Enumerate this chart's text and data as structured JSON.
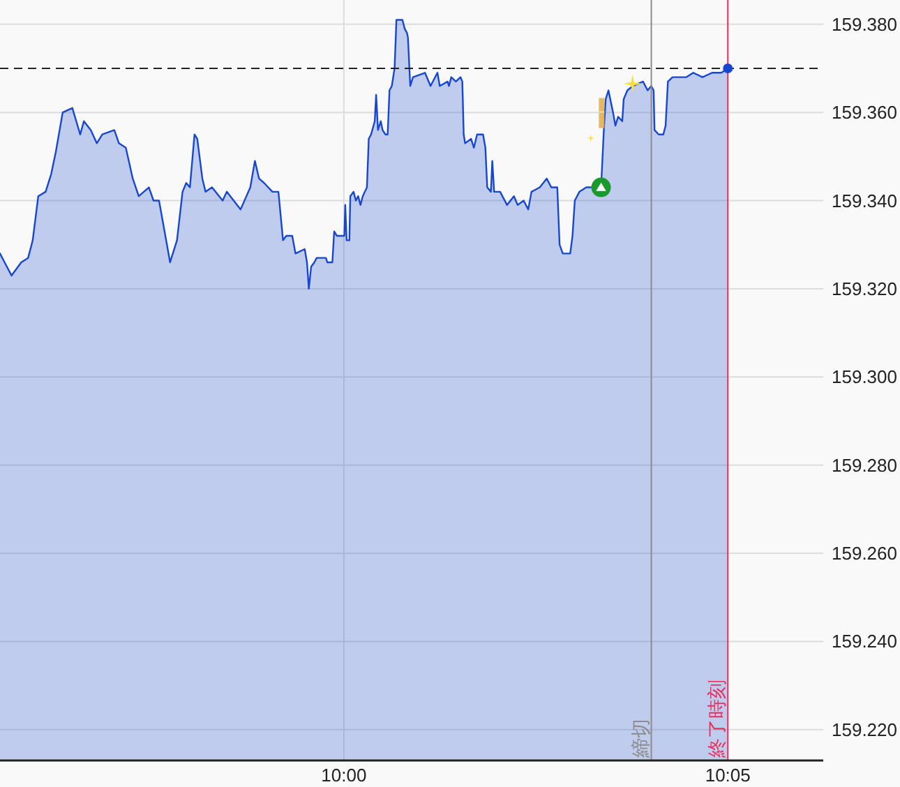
{
  "chart_data": {
    "type": "area",
    "xlim": [
      9.9254,
      10.104
    ],
    "xticks": [
      {
        "value": 10,
        "label": "10:00"
      },
      {
        "value": 10.0833,
        "label": "10:05"
      }
    ],
    "ylim": [
      159.213,
      159.3855
    ],
    "yticks": [
      {
        "value": 159.22,
        "label": "159.220"
      },
      {
        "value": 159.24,
        "label": "159.240"
      },
      {
        "value": 159.26,
        "label": "159.260"
      },
      {
        "value": 159.28,
        "label": "159.280"
      },
      {
        "value": 159.3,
        "label": "159.300"
      },
      {
        "value": 159.32,
        "label": "159.320"
      },
      {
        "value": 159.34,
        "label": "159.340"
      },
      {
        "value": 159.36,
        "label": "159.360"
      },
      {
        "value": 159.38,
        "label": "159.380"
      }
    ],
    "grid": true,
    "series": [
      {
        "color": "#1847cf",
        "x": [
          9.9254,
          9.9264,
          9.9279,
          9.93,
          9.9315,
          9.9325,
          9.9337,
          9.9353,
          9.9365,
          9.9375,
          9.939,
          9.9411,
          9.9428,
          9.9436,
          9.9451,
          9.9464,
          9.9476,
          9.9502,
          9.9512,
          9.9527,
          9.9542,
          9.9555,
          9.9577,
          9.9587,
          9.9599,
          9.9623,
          9.9638,
          9.965,
          9.9658,
          9.9666,
          9.9676,
          9.9682,
          9.9693,
          9.97,
          9.9714,
          9.9737,
          9.9746,
          9.9776,
          9.9797,
          9.9807,
          9.9816,
          9.9827,
          9.9845,
          9.9858,
          9.9868,
          9.9875,
          9.9888,
          9.9895,
          9.9915,
          9.992,
          9.9924,
          9.9929,
          9.9936,
          9.9941,
          9.9961,
          9.9964,
          9.9975,
          9.9979,
          9.9985,
          10.0001,
          10.0003,
          10.0006,
          10.0012,
          10.0014,
          10.0021,
          10.0026,
          10.0031,
          10.0036,
          10.0041,
          10.005,
          10.0054,
          10.0059,
          10.0067,
          10.007,
          10.0074,
          10.008,
          10.0084,
          10.009,
          10.0095,
          10.0099,
          10.0104,
          10.011,
          10.0114,
          10.0127,
          10.0132,
          10.0137,
          10.0139,
          10.0144,
          10.015,
          10.0176,
          10.0188,
          10.0203,
          10.0208,
          10.0225,
          10.0228,
          10.0233,
          10.0243,
          10.0253,
          10.0257,
          10.026,
          10.0263,
          10.0276,
          10.0282,
          10.0289,
          10.0302,
          10.0307,
          10.0311,
          10.0319,
          10.0322,
          10.0326,
          10.0339,
          10.0354,
          10.0369,
          10.0377,
          10.039,
          10.04,
          10.0407,
          10.0425,
          10.044,
          10.045,
          10.0463,
          10.0468,
          10.0475,
          10.0491,
          10.0496,
          10.0501,
          10.0511,
          10.0526,
          10.0541,
          10.0558,
          10.0564,
          10.0568,
          10.0574,
          10.0578,
          10.0584,
          10.0589,
          10.0595,
          10.0604,
          10.0607,
          10.0615,
          10.0627,
          10.0649,
          10.0659,
          10.0667,
          10.0672,
          10.0674,
          10.0683,
          10.0693,
          10.0698,
          10.0703,
          10.0713,
          10.0743,
          10.0758,
          10.0778,
          10.0799,
          10.0819,
          10.0833
        ],
        "values": [
          159.328,
          159.326,
          159.323,
          159.326,
          159.327,
          159.331,
          159.341,
          159.342,
          159.346,
          159.351,
          159.36,
          159.361,
          159.355,
          159.358,
          159.356,
          159.353,
          159.355,
          159.356,
          159.353,
          159.352,
          159.345,
          159.341,
          159.343,
          159.34,
          159.34,
          159.326,
          159.331,
          159.342,
          159.344,
          159.343,
          159.355,
          159.354,
          159.345,
          159.342,
          159.343,
          159.34,
          159.342,
          159.338,
          159.343,
          159.349,
          159.345,
          159.344,
          159.342,
          159.342,
          159.331,
          159.332,
          159.332,
          159.328,
          159.329,
          159.326,
          159.32,
          159.325,
          159.326,
          159.327,
          159.327,
          159.326,
          159.326,
          159.333,
          159.332,
          159.332,
          159.339,
          159.331,
          159.331,
          159.341,
          159.342,
          159.34,
          159.341,
          159.339,
          159.341,
          159.343,
          159.354,
          159.355,
          159.358,
          159.364,
          159.356,
          159.358,
          159.356,
          159.355,
          159.355,
          159.365,
          159.366,
          159.37,
          159.381,
          159.381,
          159.379,
          159.378,
          159.377,
          159.366,
          159.368,
          159.369,
          159.366,
          159.369,
          159.366,
          159.367,
          159.366,
          159.368,
          159.367,
          159.368,
          159.367,
          159.355,
          159.353,
          159.354,
          159.352,
          159.355,
          159.355,
          159.352,
          159.343,
          159.342,
          159.349,
          159.342,
          159.342,
          159.339,
          159.341,
          159.339,
          159.34,
          159.338,
          159.342,
          159.343,
          159.345,
          159.343,
          159.343,
          159.33,
          159.328,
          159.328,
          159.332,
          159.34,
          159.342,
          159.343,
          159.343,
          159.343,
          159.356,
          159.363,
          159.365,
          159.363,
          159.36,
          159.357,
          159.359,
          159.358,
          159.363,
          159.365,
          159.366,
          159.367,
          159.365,
          159.366,
          159.365,
          159.356,
          159.355,
          159.355,
          159.357,
          159.367,
          159.368,
          159.368,
          159.369,
          159.368,
          159.369,
          159.369,
          159.37
        ]
      },
      {
        "type": "scatter",
        "color": "#1a9a2c",
        "marker": "circle",
        "x": [
          10.0558
        ],
        "values": [
          159.343
        ]
      },
      {
        "type": "scatter",
        "color": "#1847cf",
        "marker": "circle",
        "x": [
          10.0833
        ],
        "values": [
          159.37
        ]
      }
    ],
    "ref_lines": [
      {
        "axis": "y",
        "value": 159.37,
        "color": "#222222",
        "line_style": "dashed"
      },
      {
        "axis": "x",
        "value": 10.0667,
        "label": "締切",
        "color": "#8c8c8c"
      },
      {
        "axis": "x",
        "value": 10.0833,
        "label": "終了時刻",
        "color": "#e8305f"
      }
    ]
  }
}
